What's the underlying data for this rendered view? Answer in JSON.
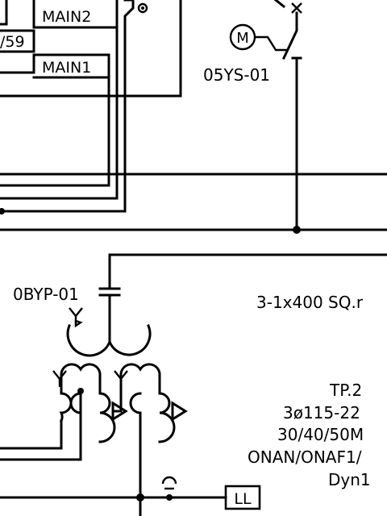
{
  "labels": {
    "main2": "MAIN2",
    "main1": "MAIN1",
    "relay_code": "/59",
    "motor_symbol": "M",
    "motor_tag": "05YS-01",
    "capacitor_tag": "0BYP-01",
    "cable": "3-1x400 SQ.r",
    "transformer": {
      "line1": "TP.2",
      "line2": "3ø115-22",
      "line3": "30/40/50M",
      "line4": "ONAN/ONAF1/",
      "line5": "Dyn1"
    },
    "ll_box": "LL"
  }
}
